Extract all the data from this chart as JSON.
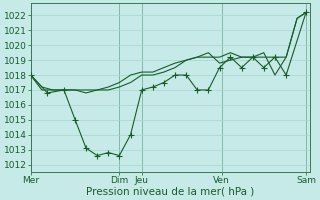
{
  "xlabel": "Pression niveau de la mer( hPa )",
  "bg_color": "#c5eae8",
  "grid_color": "#a8d5d0",
  "line_color": "#1a5c28",
  "vline_color": "#3a7a50",
  "ylim": [
    1011.5,
    1022.8
  ],
  "yticks": [
    1012,
    1013,
    1014,
    1015,
    1016,
    1017,
    1018,
    1019,
    1020,
    1021,
    1022
  ],
  "xlim": [
    0,
    1.0
  ],
  "xtick_positions": [
    0.0,
    0.317,
    0.397,
    0.683,
    0.984
  ],
  "xtick_labels": [
    "Mer",
    "Dim",
    "Jeu",
    "Ven",
    "Sam"
  ],
  "vline_positions": [
    0.0,
    0.317,
    0.397,
    0.683,
    0.984
  ],
  "line1_x": [
    0.0,
    0.04,
    0.079,
    0.119,
    0.159,
    0.198,
    0.238,
    0.278,
    0.317,
    0.357,
    0.397,
    0.437,
    0.476,
    0.516,
    0.556,
    0.595,
    0.635,
    0.675,
    0.714,
    0.754,
    0.794,
    0.833,
    0.873,
    0.913,
    0.952,
    0.984
  ],
  "line1_y": [
    1018.0,
    1017.2,
    1017.0,
    1017.0,
    1017.0,
    1017.0,
    1017.0,
    1017.0,
    1017.2,
    1017.5,
    1018.0,
    1018.0,
    1018.2,
    1018.5,
    1019.0,
    1019.2,
    1019.2,
    1019.2,
    1019.5,
    1019.2,
    1019.2,
    1019.2,
    1019.2,
    1019.2,
    1021.8,
    1022.2
  ],
  "line2_x": [
    0.0,
    0.04,
    0.079,
    0.119,
    0.159,
    0.198,
    0.238,
    0.278,
    0.317,
    0.357,
    0.397,
    0.437,
    0.476,
    0.516,
    0.556,
    0.595,
    0.635,
    0.675,
    0.714,
    0.754,
    0.794,
    0.833,
    0.873,
    0.913,
    0.952,
    0.984
  ],
  "line2_y": [
    1018.0,
    1017.0,
    1017.0,
    1017.0,
    1017.0,
    1016.8,
    1017.0,
    1017.2,
    1017.5,
    1018.0,
    1018.2,
    1018.2,
    1018.5,
    1018.8,
    1019.0,
    1019.2,
    1019.5,
    1018.8,
    1019.0,
    1019.2,
    1019.2,
    1019.5,
    1018.0,
    1019.2,
    1021.8,
    1022.2
  ],
  "line3_x": [
    0.0,
    0.06,
    0.119,
    0.159,
    0.198,
    0.238,
    0.278,
    0.317,
    0.357,
    0.397,
    0.437,
    0.476,
    0.516,
    0.556,
    0.595,
    0.635,
    0.675,
    0.714,
    0.754,
    0.794,
    0.833,
    0.873,
    0.913,
    0.984
  ],
  "line3_y": [
    1018.0,
    1016.8,
    1017.0,
    1015.0,
    1013.1,
    1012.6,
    1012.8,
    1012.6,
    1014.0,
    1017.0,
    1017.2,
    1017.5,
    1018.0,
    1018.0,
    1017.0,
    1017.0,
    1018.5,
    1019.2,
    1018.5,
    1019.2,
    1018.5,
    1019.2,
    1018.0,
    1022.2
  ],
  "xlabel_fontsize": 7.5,
  "tick_fontsize": 6.5
}
